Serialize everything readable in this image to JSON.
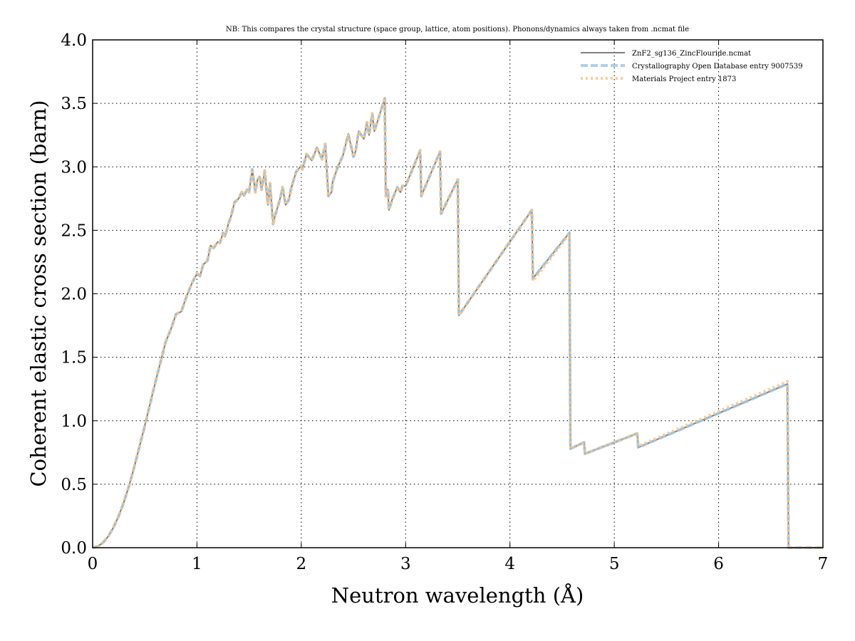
{
  "chart_data": {
    "type": "line",
    "title": "NB: This compares the crystal structure (space group, lattice, atom positions). Phonons/dynamics always taken from .ncmat file",
    "xlabel": "Neutron wavelength (Å)",
    "ylabel": "Coherent elastic cross section (barn)",
    "xlim": [
      0,
      7
    ],
    "ylim": [
      0,
      4.0
    ],
    "xticks": [
      0,
      1,
      2,
      3,
      4,
      5,
      6,
      7
    ],
    "xtick_labels": [
      "0",
      "1",
      "2",
      "3",
      "4",
      "5",
      "6",
      "7"
    ],
    "yticks": [
      0,
      0.5,
      1.0,
      1.5,
      2.0,
      2.5,
      3.0,
      3.5,
      4.0
    ],
    "ytick_labels": [
      "0.0",
      "0.5",
      "1.0",
      "1.5",
      "2.0",
      "2.5",
      "3.0",
      "3.5",
      "4.0"
    ],
    "grid": true,
    "legend_position": "top-right",
    "series": [
      {
        "name": "ZnF2_sg136_ZincFlouride.ncmat",
        "color": "#7f7f7f",
        "style": "solid",
        "x": [
          0,
          0.05,
          0.1,
          0.15,
          0.2,
          0.25,
          0.3,
          0.35,
          0.4,
          0.45,
          0.5,
          0.55,
          0.6,
          0.65,
          0.7,
          0.75,
          0.8,
          0.85,
          0.9,
          0.95,
          1.0,
          1.03,
          1.06,
          1.1,
          1.13,
          1.16,
          1.2,
          1.22,
          1.25,
          1.27,
          1.3,
          1.33,
          1.36,
          1.4,
          1.43,
          1.45,
          1.48,
          1.5,
          1.53,
          1.56,
          1.58,
          1.6,
          1.62,
          1.65,
          1.68,
          1.7,
          1.73,
          1.75,
          1.78,
          1.8,
          1.82,
          1.85,
          1.88,
          1.9,
          1.95,
          2.0,
          2.01,
          2.05,
          2.1,
          2.15,
          2.2,
          2.23,
          2.26,
          2.29,
          2.3,
          2.35,
          2.4,
          2.45,
          2.5,
          2.52,
          2.55,
          2.6,
          2.63,
          2.65,
          2.68,
          2.7,
          2.72,
          2.8,
          2.81,
          2.83,
          2.84,
          2.87,
          2.92,
          2.95,
          2.97,
          3.0,
          3.14,
          3.15,
          3.33,
          3.34,
          3.5,
          3.51,
          4.21,
          4.22,
          4.57,
          4.58,
          4.71,
          4.72,
          5.22,
          5.23,
          6.66,
          6.67,
          7.0
        ],
        "y": [
          0,
          0.01,
          0.04,
          0.09,
          0.16,
          0.25,
          0.36,
          0.49,
          0.64,
          0.8,
          0.96,
          1.13,
          1.3,
          1.46,
          1.62,
          1.72,
          1.84,
          1.86,
          1.98,
          2.08,
          2.16,
          2.14,
          2.23,
          2.26,
          2.38,
          2.36,
          2.41,
          2.4,
          2.48,
          2.45,
          2.55,
          2.62,
          2.72,
          2.75,
          2.8,
          2.77,
          2.82,
          2.8,
          2.98,
          2.8,
          2.9,
          2.92,
          2.82,
          2.97,
          2.7,
          2.87,
          2.55,
          2.62,
          2.7,
          2.76,
          2.84,
          2.7,
          2.74,
          2.82,
          2.96,
          3.01,
          2.98,
          3.1,
          3.05,
          3.15,
          3.06,
          3.18,
          2.77,
          2.8,
          2.88,
          3.0,
          3.09,
          3.26,
          3.08,
          3.12,
          3.28,
          3.22,
          3.35,
          3.25,
          3.42,
          3.28,
          3.33,
          3.54,
          2.77,
          2.82,
          2.66,
          2.74,
          2.84,
          2.8,
          2.85,
          2.85,
          3.13,
          2.77,
          3.12,
          2.63,
          2.9,
          1.83,
          2.66,
          2.12,
          2.48,
          0.78,
          0.83,
          0.74,
          0.9,
          0.79,
          1.29,
          0,
          0
        ]
      },
      {
        "name": "Crystallography Open Database entry 9007539",
        "color": "#9cc8e6",
        "style": "dashed",
        "x": [
          0,
          0.05,
          0.1,
          0.15,
          0.2,
          0.25,
          0.3,
          0.35,
          0.4,
          0.45,
          0.5,
          0.55,
          0.6,
          0.65,
          0.7,
          0.75,
          0.8,
          0.85,
          0.9,
          0.95,
          1.0,
          1.03,
          1.06,
          1.1,
          1.13,
          1.16,
          1.2,
          1.22,
          1.25,
          1.27,
          1.3,
          1.33,
          1.36,
          1.4,
          1.43,
          1.45,
          1.48,
          1.5,
          1.53,
          1.56,
          1.58,
          1.6,
          1.62,
          1.65,
          1.68,
          1.7,
          1.73,
          1.75,
          1.78,
          1.8,
          1.82,
          1.85,
          1.88,
          1.9,
          1.95,
          2.0,
          2.01,
          2.05,
          2.1,
          2.15,
          2.2,
          2.23,
          2.26,
          2.29,
          2.3,
          2.35,
          2.4,
          2.45,
          2.5,
          2.52,
          2.55,
          2.6,
          2.63,
          2.65,
          2.68,
          2.7,
          2.72,
          2.8,
          2.81,
          2.83,
          2.84,
          2.87,
          2.92,
          2.95,
          2.97,
          3.0,
          3.14,
          3.15,
          3.33,
          3.34,
          3.5,
          3.51,
          4.21,
          4.22,
          4.57,
          4.58,
          4.71,
          4.72,
          5.22,
          5.23,
          6.66,
          6.67,
          7.0
        ],
        "y": [
          0,
          0.01,
          0.04,
          0.09,
          0.16,
          0.25,
          0.36,
          0.49,
          0.64,
          0.8,
          0.96,
          1.13,
          1.3,
          1.46,
          1.62,
          1.72,
          1.84,
          1.86,
          1.98,
          2.08,
          2.16,
          2.14,
          2.23,
          2.26,
          2.38,
          2.36,
          2.41,
          2.4,
          2.48,
          2.45,
          2.55,
          2.62,
          2.72,
          2.75,
          2.8,
          2.77,
          2.82,
          2.8,
          2.98,
          2.8,
          2.9,
          2.92,
          2.82,
          2.97,
          2.7,
          2.87,
          2.55,
          2.62,
          2.7,
          2.76,
          2.84,
          2.7,
          2.74,
          2.82,
          2.96,
          3.01,
          2.98,
          3.1,
          3.05,
          3.15,
          3.06,
          3.18,
          2.77,
          2.8,
          2.88,
          3.0,
          3.09,
          3.26,
          3.08,
          3.12,
          3.28,
          3.22,
          3.35,
          3.25,
          3.42,
          3.28,
          3.33,
          3.54,
          2.77,
          2.82,
          2.66,
          2.74,
          2.84,
          2.8,
          2.85,
          2.85,
          3.13,
          2.77,
          3.12,
          2.63,
          2.9,
          1.83,
          2.66,
          2.12,
          2.48,
          0.78,
          0.83,
          0.74,
          0.9,
          0.79,
          1.29,
          0,
          0
        ]
      },
      {
        "name": "Materials Project entry 1873",
        "color": "#fcc688",
        "style": "dotted",
        "x": [
          0,
          0.05,
          0.1,
          0.15,
          0.2,
          0.25,
          0.3,
          0.35,
          0.4,
          0.45,
          0.5,
          0.55,
          0.6,
          0.65,
          0.7,
          0.75,
          0.8,
          0.85,
          0.9,
          0.95,
          1.0,
          1.03,
          1.06,
          1.1,
          1.13,
          1.16,
          1.2,
          1.22,
          1.25,
          1.27,
          1.3,
          1.33,
          1.36,
          1.4,
          1.43,
          1.45,
          1.48,
          1.5,
          1.53,
          1.56,
          1.58,
          1.6,
          1.62,
          1.65,
          1.68,
          1.7,
          1.73,
          1.75,
          1.78,
          1.8,
          1.82,
          1.85,
          1.88,
          1.9,
          1.95,
          2.0,
          2.01,
          2.05,
          2.1,
          2.15,
          2.2,
          2.23,
          2.26,
          2.29,
          2.3,
          2.35,
          2.4,
          2.45,
          2.5,
          2.52,
          2.55,
          2.6,
          2.63,
          2.65,
          2.68,
          2.7,
          2.72,
          2.8,
          2.81,
          2.83,
          2.84,
          2.87,
          2.92,
          2.95,
          2.97,
          3.0,
          3.14,
          3.15,
          3.33,
          3.34,
          3.5,
          3.51,
          4.21,
          4.22,
          4.57,
          4.58,
          4.71,
          4.72,
          5.22,
          5.23,
          6.66,
          6.67,
          7.0
        ],
        "y": [
          0,
          0.01,
          0.04,
          0.09,
          0.16,
          0.25,
          0.36,
          0.49,
          0.64,
          0.8,
          0.96,
          1.13,
          1.3,
          1.46,
          1.62,
          1.72,
          1.84,
          1.86,
          1.98,
          2.08,
          2.16,
          2.14,
          2.23,
          2.26,
          2.38,
          2.36,
          2.41,
          2.4,
          2.48,
          2.45,
          2.55,
          2.62,
          2.72,
          2.75,
          2.8,
          2.77,
          2.82,
          2.8,
          2.98,
          2.8,
          2.9,
          2.92,
          2.82,
          2.97,
          2.7,
          2.87,
          2.55,
          2.62,
          2.7,
          2.76,
          2.84,
          2.7,
          2.74,
          2.82,
          2.96,
          3.01,
          2.98,
          3.1,
          3.05,
          3.15,
          3.06,
          3.18,
          2.77,
          2.8,
          2.88,
          3.0,
          3.09,
          3.26,
          3.08,
          3.12,
          3.28,
          3.22,
          3.35,
          3.25,
          3.42,
          3.28,
          3.33,
          3.54,
          2.77,
          2.82,
          2.66,
          2.74,
          2.84,
          2.8,
          2.85,
          2.85,
          3.13,
          2.77,
          3.12,
          2.63,
          2.9,
          1.83,
          2.66,
          2.1,
          2.47,
          0.78,
          0.83,
          0.74,
          0.9,
          0.8,
          1.31,
          0,
          0
        ]
      }
    ]
  }
}
